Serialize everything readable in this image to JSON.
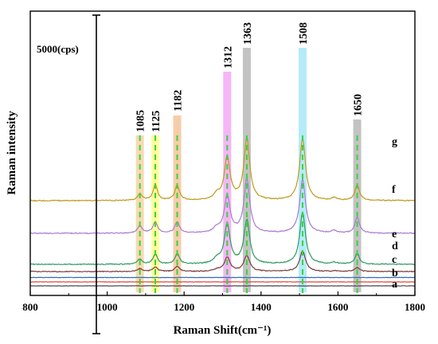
{
  "chart_data": {
    "type": "line",
    "xlabel": "Raman Shift(cm⁻¹)",
    "ylabel": "Raman intensity",
    "xlim": [
      800,
      1800
    ],
    "x_ticks": [
      "800",
      "1000",
      "1200",
      "1400",
      "1600",
      "1800"
    ],
    "scale_bar": {
      "label": "5000(cps)",
      "value": 5000
    },
    "highlighted_peaks": [
      {
        "label": "1085",
        "x": 1085,
        "color": "#f6d3a6"
      },
      {
        "label": "1125",
        "x": 1125,
        "color": "#ffff8a"
      },
      {
        "label": "1182",
        "x": 1182,
        "color": "#f6c49a"
      },
      {
        "label": "1312",
        "x": 1312,
        "color": "#f4a8f4"
      },
      {
        "label": "1363",
        "x": 1363,
        "color": "#b9b9b9"
      },
      {
        "label": "1508",
        "x": 1508,
        "color": "#a8e8f8"
      },
      {
        "label": "1650",
        "x": 1650,
        "color": "#b9b9b9"
      }
    ],
    "peak_marker_color": "#39d33f",
    "series": [
      {
        "label": "a",
        "color": "#4a4a4a",
        "baseline": 0,
        "peaks": []
      },
      {
        "label": "b",
        "color": "#e0463c",
        "baseline": 1000,
        "peaks": []
      },
      {
        "label": "c",
        "color": "#2f6db5",
        "baseline": 2100,
        "peaks": []
      },
      {
        "label": "d",
        "color": "#7b3b3b",
        "baseline": 3600,
        "peaks": [
          {
            "x": 1085,
            "y": 700
          },
          {
            "x": 1125,
            "y": 1100
          },
          {
            "x": 1182,
            "y": 1300
          },
          {
            "x": 1312,
            "y": 3500
          },
          {
            "x": 1363,
            "y": 4000
          },
          {
            "x": 1508,
            "y": 5200
          },
          {
            "x": 1650,
            "y": 1000
          }
        ]
      },
      {
        "label": "e",
        "color": "#2e9a5c",
        "baseline": 5400,
        "peaks": [
          {
            "x": 1085,
            "y": 1300
          },
          {
            "x": 1125,
            "y": 2500
          },
          {
            "x": 1182,
            "y": 2600
          },
          {
            "x": 1312,
            "y": 10000
          },
          {
            "x": 1363,
            "y": 11000
          },
          {
            "x": 1508,
            "y": 13000
          },
          {
            "x": 1650,
            "y": 2700
          }
        ]
      },
      {
        "label": "f",
        "color": "#a97bd0",
        "baseline": 13200,
        "peaks": [
          {
            "x": 1085,
            "y": 1900
          },
          {
            "x": 1125,
            "y": 2800
          },
          {
            "x": 1182,
            "y": 2800
          },
          {
            "x": 1312,
            "y": 9200
          },
          {
            "x": 1363,
            "y": 13500
          },
          {
            "x": 1508,
            "y": 13500
          },
          {
            "x": 1650,
            "y": 4000
          }
        ]
      },
      {
        "label": "g",
        "color": "#bf9a1b",
        "baseline": 21400,
        "peaks": [
          {
            "x": 1085,
            "y": 1700
          },
          {
            "x": 1125,
            "y": 3900
          },
          {
            "x": 1182,
            "y": 3800
          },
          {
            "x": 1312,
            "y": 10700
          },
          {
            "x": 1363,
            "y": 15600
          },
          {
            "x": 1508,
            "y": 15600
          },
          {
            "x": 1650,
            "y": 4000
          }
        ]
      }
    ]
  }
}
